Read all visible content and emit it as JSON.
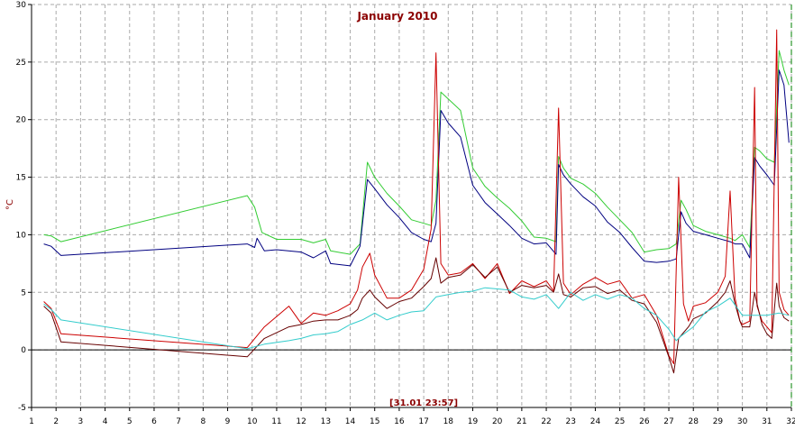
{
  "chart_data": {
    "type": "line",
    "title": "January 2010",
    "ylabel": "°C",
    "xlabel": "",
    "xlim": [
      1,
      32
    ],
    "ylim": [
      -5,
      30
    ],
    "x_ticks": [
      1,
      2,
      3,
      4,
      5,
      6,
      7,
      8,
      9,
      10,
      11,
      12,
      13,
      14,
      15,
      16,
      17,
      18,
      19,
      20,
      21,
      22,
      23,
      24,
      25,
      26,
      27,
      28,
      29,
      30,
      31,
      32
    ],
    "y_ticks": [
      -5,
      0,
      5,
      10,
      15,
      20,
      25,
      30
    ],
    "grid": true,
    "timestamp_label": "[31.01 23:57]",
    "timestamp_x": 17,
    "marker_x": 32,
    "colors": {
      "green": "#33cc33",
      "navy": "#000080",
      "red": "#cc0000",
      "darkred": "#660000",
      "cyan": "#33cccc",
      "grid": "#aaaaaa",
      "marker": "#008000",
      "text": "#8b0000"
    },
    "series": [
      {
        "color": "#33cc33",
        "x": [
          1.5,
          1.8,
          2.2,
          9.8,
          10.1,
          10.4,
          11,
          12,
          12.5,
          13,
          13.2,
          14,
          14.4,
          14.7,
          15,
          15.5,
          16,
          16.5,
          17,
          17.3,
          17.5,
          17.7,
          18,
          18.5,
          19,
          19.5,
          20,
          20.5,
          21,
          21.5,
          22,
          22.4,
          22.5,
          22.7,
          23,
          23.5,
          24,
          24.5,
          25,
          25.5,
          26,
          26.5,
          27,
          27.3,
          27.5,
          27.7,
          28,
          28.5,
          29,
          29.5,
          29.7,
          30,
          30.3,
          30.5,
          30.7,
          31,
          31.3,
          31.5,
          31.7,
          31.9
        ],
        "y": [
          10,
          9.9,
          9.4,
          13.4,
          12.4,
          10.2,
          9.6,
          9.6,
          9.3,
          9.6,
          8.6,
          8.3,
          9.2,
          16.3,
          15,
          13.6,
          12.5,
          11.3,
          11,
          10.8,
          13,
          22.4,
          21.8,
          20.8,
          15.8,
          14.2,
          13.2,
          12.3,
          11.2,
          9.8,
          9.7,
          9.4,
          16.8,
          15.8,
          14.9,
          14.4,
          13.6,
          12.4,
          11.3,
          10.2,
          8.5,
          8.7,
          8.8,
          9.2,
          13,
          12.2,
          10.8,
          10.3,
          10,
          9.7,
          9.5,
          10,
          8.9,
          17.6,
          17.3,
          16.6,
          16.3,
          26,
          24.3,
          23
        ]
      },
      {
        "color": "#000080",
        "x": [
          1.5,
          1.8,
          2.2,
          9.8,
          10.1,
          10.2,
          10.5,
          11,
          12,
          12.5,
          13,
          13.2,
          14,
          14.4,
          14.7,
          15,
          15.5,
          16,
          16.5,
          17,
          17.3,
          17.5,
          17.7,
          18,
          18.5,
          19,
          19.5,
          20,
          20.5,
          21,
          21.5,
          22,
          22.4,
          22.5,
          22.7,
          23,
          23.5,
          24,
          24.5,
          25,
          25.5,
          26,
          26.5,
          27,
          27.3,
          27.5,
          27.7,
          28,
          28.5,
          29,
          29.5,
          29.7,
          30,
          30.3,
          30.5,
          30.7,
          31,
          31.3,
          31.5,
          31.7,
          31.9
        ],
        "y": [
          9.2,
          9,
          8.2,
          9.2,
          8.9,
          9.7,
          8.6,
          8.7,
          8.5,
          8,
          8.6,
          7.5,
          7.3,
          9,
          14.8,
          14,
          12.6,
          11.5,
          10.2,
          9.6,
          9.4,
          11,
          20.8,
          19.7,
          18.5,
          14.3,
          12.8,
          11.8,
          10.8,
          9.7,
          9.2,
          9.3,
          8.3,
          16.1,
          15.2,
          14.4,
          13.3,
          12.5,
          11.1,
          10.2,
          8.9,
          7.7,
          7.6,
          7.7,
          7.9,
          12,
          11,
          10.3,
          10,
          9.7,
          9.4,
          9.2,
          9.2,
          8,
          16.7,
          16,
          15.2,
          14.3,
          24.3,
          23,
          18
        ]
      },
      {
        "color": "#cc0000",
        "x": [
          1.5,
          1.8,
          2.2,
          9.8,
          10.5,
          11.5,
          12,
          12.5,
          13,
          13.5,
          14,
          14.3,
          14.5,
          14.8,
          15,
          15.5,
          16,
          16.5,
          17,
          17.3,
          17.5,
          17.7,
          18,
          18.5,
          19,
          19.5,
          20,
          20.5,
          21,
          21.5,
          22,
          22.3,
          22.5,
          22.7,
          23,
          23.5,
          24,
          24.5,
          25,
          25.5,
          26,
          26.5,
          27,
          27.2,
          27.4,
          27.6,
          27.8,
          28,
          28.5,
          29,
          29.3,
          29.5,
          29.7,
          29.9,
          30,
          30.3,
          30.5,
          30.6,
          30.8,
          31,
          31.2,
          31.4,
          31.5,
          31.7,
          31.9
        ],
        "y": [
          4.2,
          3.6,
          1.4,
          0.2,
          2,
          3.8,
          2.3,
          3.2,
          3,
          3.4,
          4,
          5.2,
          7.2,
          8.4,
          6.5,
          4.5,
          4.5,
          5.2,
          7,
          10.5,
          25.8,
          7.5,
          6.5,
          6.7,
          7.5,
          6.2,
          7.5,
          4.9,
          6,
          5.5,
          6,
          5.1,
          21,
          5.8,
          4.8,
          5.7,
          6.3,
          5.7,
          6,
          4.5,
          4.8,
          3,
          -0.5,
          -1.2,
          15,
          4,
          2.5,
          3.8,
          4.1,
          5,
          6.4,
          13.8,
          4.5,
          2.5,
          2.2,
          2.5,
          22.8,
          3.8,
          2.5,
          2,
          1.5,
          27.8,
          5,
          3.5,
          3
        ]
      },
      {
        "color": "#660000",
        "x": [
          1.5,
          1.8,
          2.2,
          9.8,
          10.5,
          11.5,
          12,
          12.5,
          13,
          13.5,
          14,
          14.3,
          14.5,
          14.8,
          15,
          15.5,
          16,
          16.5,
          17,
          17.3,
          17.5,
          17.7,
          18,
          18.5,
          19,
          19.5,
          20,
          20.5,
          21,
          21.5,
          22,
          22.3,
          22.5,
          22.7,
          23,
          23.5,
          24,
          24.5,
          25,
          25.5,
          26,
          26.5,
          27,
          27.2,
          27.4,
          27.6,
          27.8,
          28,
          28.5,
          29,
          29.3,
          29.5,
          29.7,
          29.9,
          30,
          30.3,
          30.5,
          30.6,
          30.8,
          31,
          31.2,
          31.4,
          31.5,
          31.7,
          31.9
        ],
        "y": [
          3.8,
          3.2,
          0.7,
          -0.6,
          1,
          2,
          2.2,
          2.5,
          2.6,
          2.6,
          3,
          3.5,
          4.5,
          5.2,
          4.6,
          3.6,
          4.2,
          4.5,
          5.5,
          6.2,
          8,
          5.8,
          6.3,
          6.5,
          7.4,
          6.3,
          7.2,
          5,
          5.6,
          5.4,
          5.6,
          5,
          6.6,
          4.8,
          4.6,
          5.4,
          5.5,
          4.9,
          5.2,
          4.3,
          4,
          2.4,
          -0.6,
          -2,
          1,
          1.5,
          2,
          2.7,
          3.2,
          4.2,
          5,
          6,
          4,
          2.5,
          2,
          2,
          5,
          4,
          2.2,
          1.4,
          1,
          5.8,
          3.8,
          2.8,
          2.5
        ]
      },
      {
        "color": "#33cccc",
        "x": [
          1.5,
          1.8,
          2.2,
          9.8,
          10.5,
          11.5,
          12,
          12.5,
          13,
          13.5,
          14,
          14.5,
          15,
          15.5,
          16,
          16.5,
          17,
          17.5,
          18,
          18.5,
          19,
          19.5,
          20,
          20.5,
          21,
          21.5,
          22,
          22.5,
          23,
          23.5,
          24,
          24.5,
          25,
          25.5,
          26,
          26.5,
          27,
          27.3,
          27.5,
          28,
          28.5,
          29,
          29.5,
          30,
          30.5,
          31,
          31.5,
          31.9
        ],
        "y": [
          4,
          3.5,
          2.6,
          0.1,
          0.5,
          0.8,
          1,
          1.3,
          1.4,
          1.6,
          2.2,
          2.6,
          3.2,
          2.6,
          3,
          3.3,
          3.4,
          4.6,
          4.8,
          5,
          5.1,
          5.4,
          5.3,
          5.2,
          4.6,
          4.4,
          4.8,
          3.6,
          5,
          4.3,
          4.8,
          4.4,
          4.8,
          4.5,
          3.6,
          3,
          1.8,
          0.8,
          1.2,
          2,
          3.3,
          3.8,
          4.5,
          3,
          3,
          3,
          3.2,
          3
        ]
      }
    ]
  }
}
